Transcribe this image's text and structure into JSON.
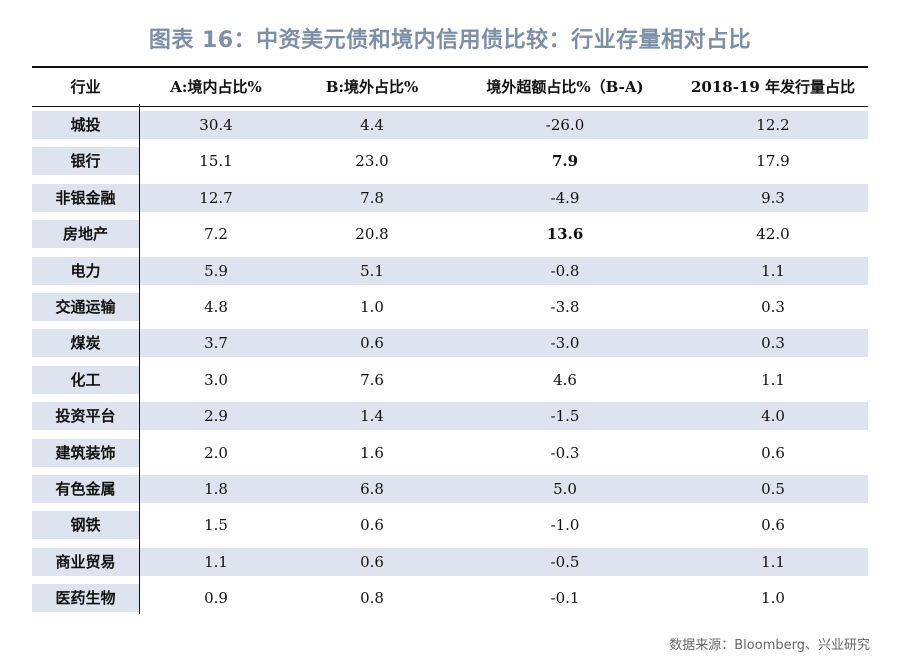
{
  "title": "图表 16：中资美元债和境内信用债比较：行业存量相对占比",
  "source": "数据来源：Bloomberg、兴业研究",
  "chart_data": {
    "type": "table",
    "columns": [
      "行业",
      "A:境内占比%",
      "B:境外占比%",
      "境外超额占比%（B-A)",
      "2018-19 年发行量占比"
    ],
    "rows": [
      [
        "城投",
        "30.4",
        "4.4",
        "-26.0",
        "12.2"
      ],
      [
        "银行",
        "15.1",
        "23.0",
        "7.9",
        "17.9"
      ],
      [
        "非银金融",
        "12.7",
        "7.8",
        "-4.9",
        "9.3"
      ],
      [
        "房地产",
        "7.2",
        "20.8",
        "13.6",
        "42.0"
      ],
      [
        "电力",
        "5.9",
        "5.1",
        "-0.8",
        "1.1"
      ],
      [
        "交通运输",
        "4.8",
        "1.0",
        "-3.8",
        "0.3"
      ],
      [
        "煤炭",
        "3.7",
        "0.6",
        "-3.0",
        "0.3"
      ],
      [
        "化工",
        "3.0",
        "7.6",
        "4.6",
        "1.1"
      ],
      [
        "投资平台",
        "2.9",
        "1.4",
        "-1.5",
        "4.0"
      ],
      [
        "建筑装饰",
        "2.0",
        "1.6",
        "-0.3",
        "0.6"
      ],
      [
        "有色金属",
        "1.8",
        "6.8",
        "5.0",
        "0.5"
      ],
      [
        "钢铁",
        "1.5",
        "0.6",
        "-1.0",
        "0.6"
      ],
      [
        "商业贸易",
        "1.1",
        "0.6",
        "-0.5",
        "1.1"
      ],
      [
        "医药生物",
        "0.9",
        "0.8",
        "-0.1",
        "1.0"
      ]
    ],
    "bold_cells": [
      [
        1,
        3
      ],
      [
        3,
        3
      ]
    ]
  }
}
